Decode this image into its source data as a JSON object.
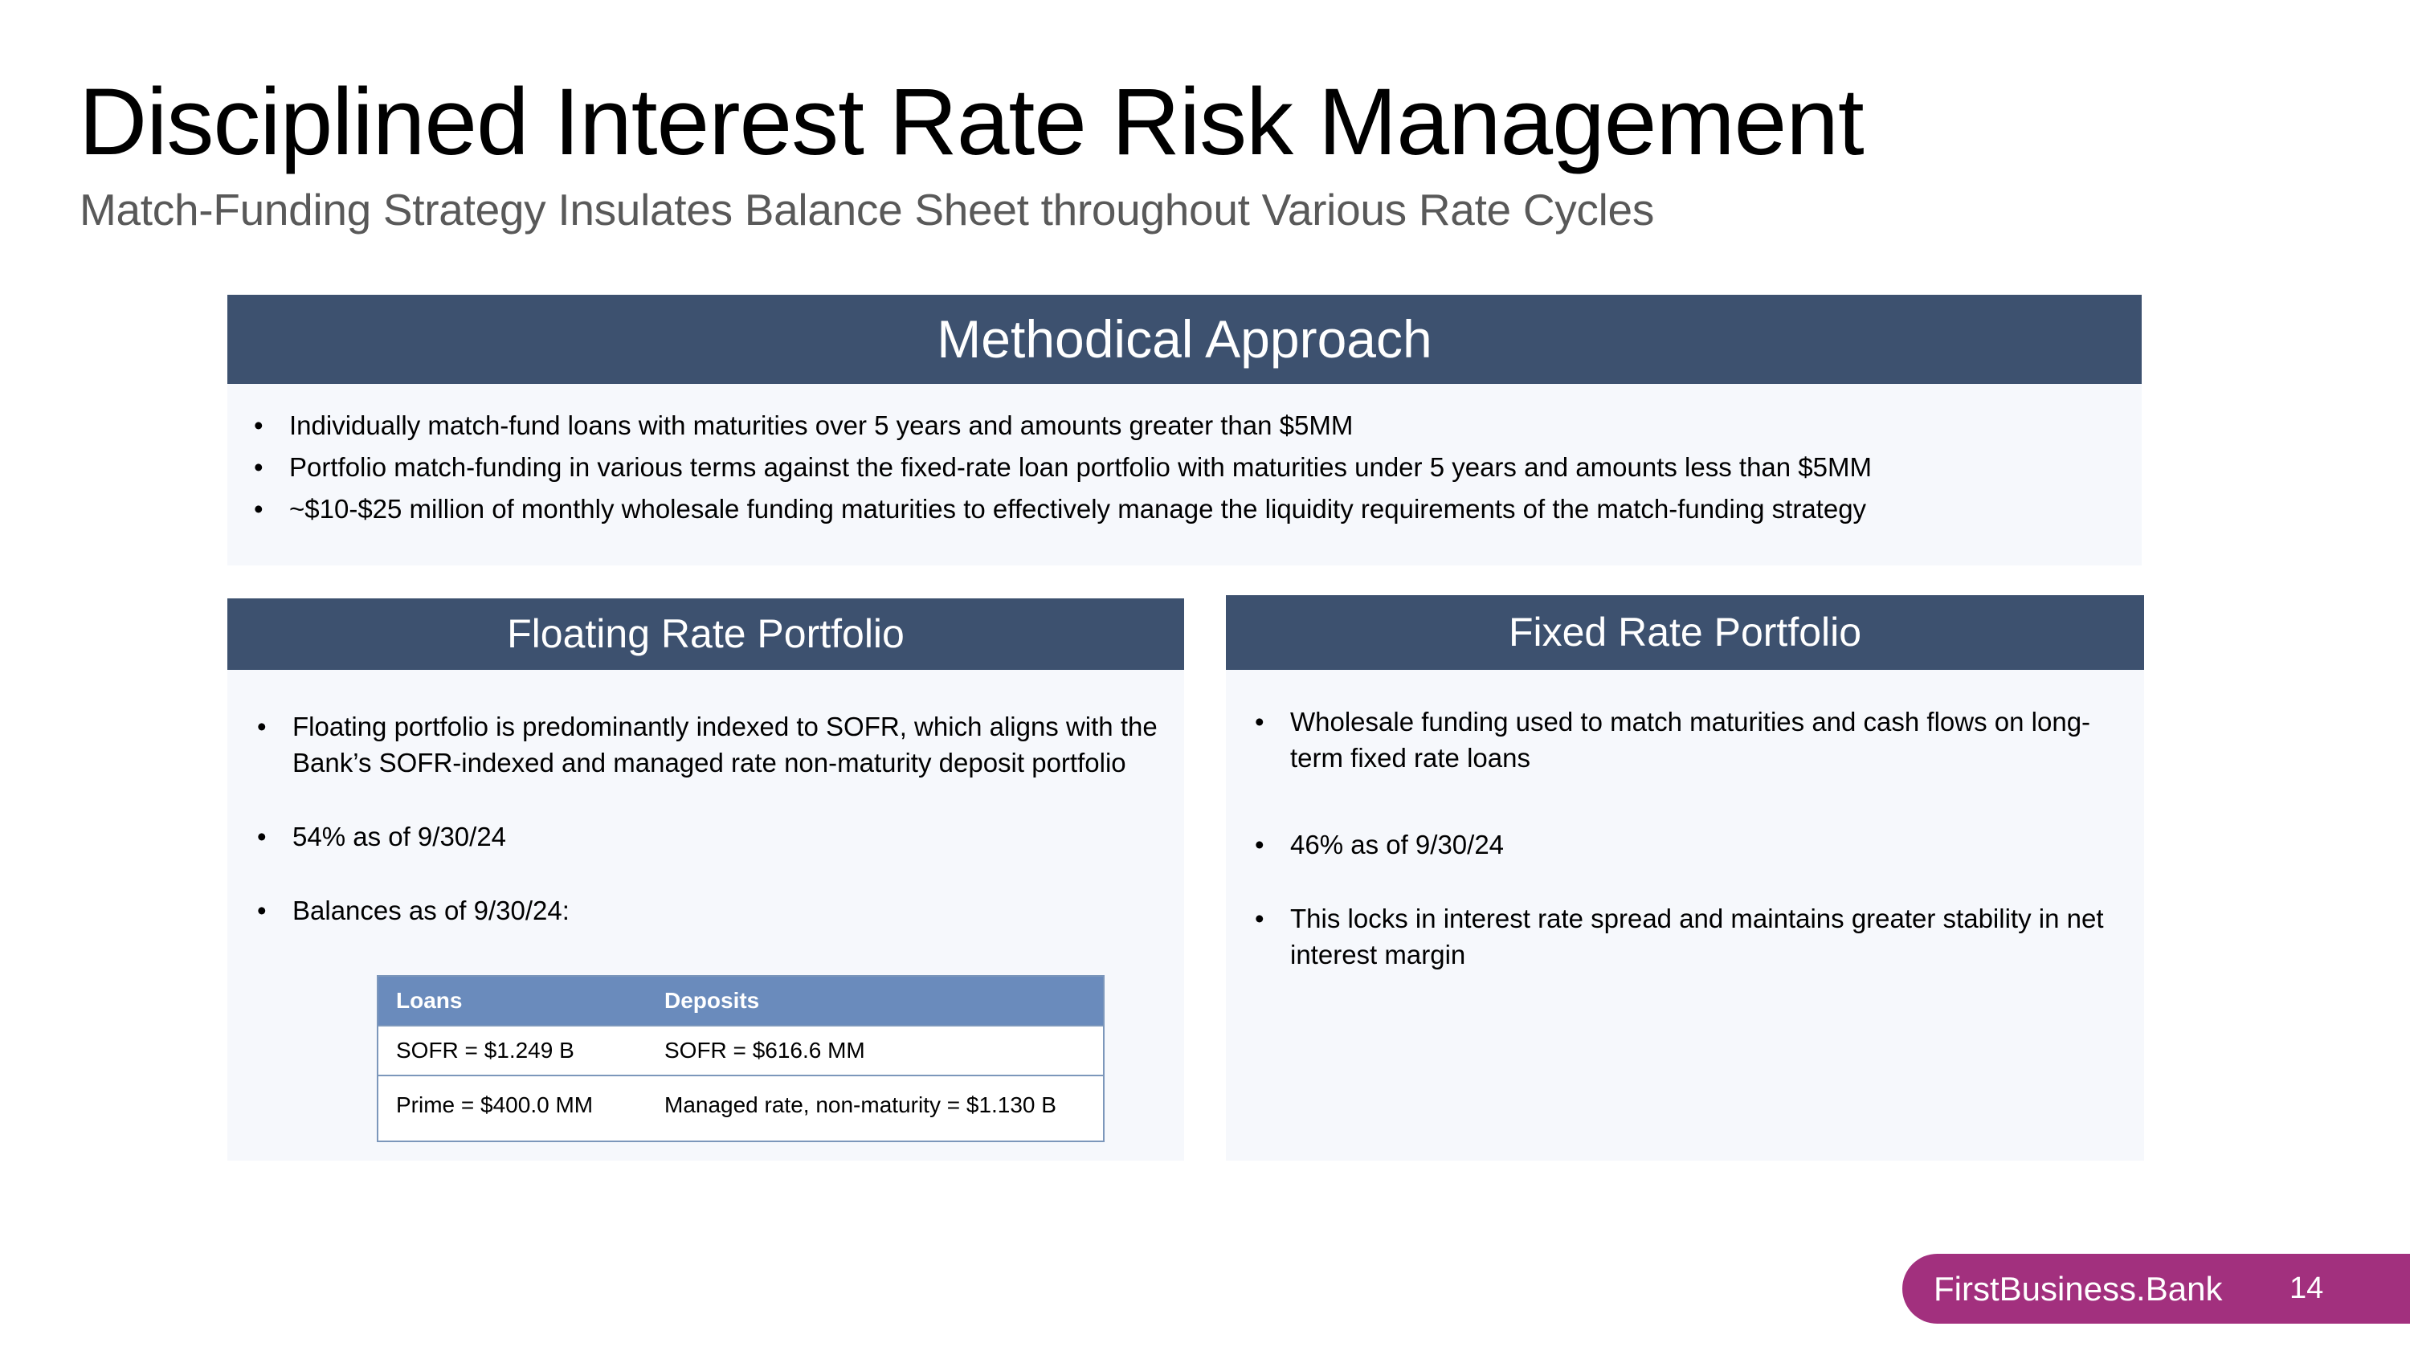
{
  "title": "Disciplined Interest Rate Risk Management",
  "subtitle": "Match-Funding Strategy Insulates Balance Sheet throughout Various Rate Cycles",
  "methodical": {
    "heading": "Methodical Approach",
    "bullets": [
      "Individually match-fund loans with maturities over 5 years and amounts greater than $5MM",
      "Portfolio match-funding in various terms against the fixed-rate loan portfolio with maturities under 5 years and amounts less than $5MM",
      "~$10-$25 million of monthly wholesale funding maturities to effectively manage the liquidity requirements of the match-funding strategy"
    ]
  },
  "floating": {
    "heading": "Floating Rate Portfolio",
    "bullets": [
      "Floating portfolio is predominantly indexed to SOFR, which aligns with the Bank’s SOFR-indexed and managed rate non-maturity deposit portfolio",
      "54% as of 9/30/24",
      "Balances as of 9/30/24:"
    ],
    "table": {
      "headers": [
        "Loans",
        "Deposits"
      ],
      "rows": [
        [
          "SOFR = $1.249 B",
          "SOFR = $616.6 MM"
        ],
        [
          "Prime = $400.0 MM",
          "Managed rate, non-maturity = $1.130 B"
        ]
      ]
    }
  },
  "fixed": {
    "heading": "Fixed Rate Portfolio",
    "bullets": [
      "Wholesale funding used to match maturities and cash flows on long-term fixed rate loans",
      "46% as of 9/30/24",
      "This locks in interest rate spread and maintains greater stability in net interest margin"
    ]
  },
  "footer": {
    "brand": "FirstBusiness.Bank",
    "page_number": "14"
  },
  "colors": {
    "panel_header": "#3d516f",
    "panel_background": "#f6f8fc",
    "table_header": "#6a8bbc",
    "brand": "#a2307e"
  }
}
